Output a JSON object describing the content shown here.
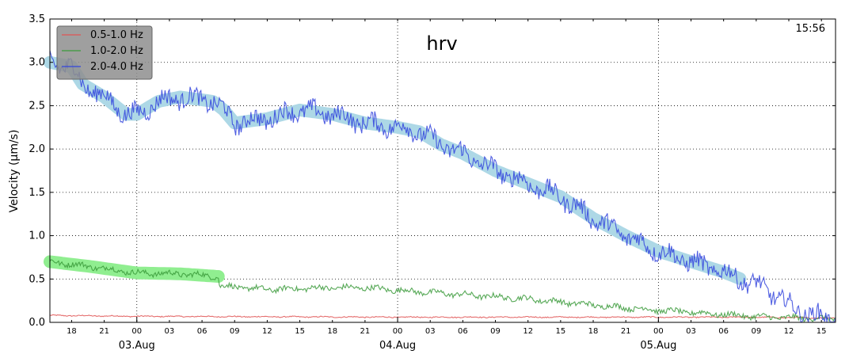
{
  "chart_data": {
    "type": "line",
    "title": "hrv",
    "time_label": "15:56",
    "ylabel": "Velocity (μm/s)",
    "ylim": [
      0,
      3.5
    ],
    "yticks": [
      "0.0",
      "0.5",
      "1.0",
      "1.5",
      "2.0",
      "2.5",
      "3.0",
      "3.5"
    ],
    "xlim_hours": [
      -8,
      64.3
    ],
    "xticks": [
      {
        "h": -6,
        "label": "18"
      },
      {
        "h": -3,
        "label": "21"
      },
      {
        "h": 0,
        "label": "00"
      },
      {
        "h": 3,
        "label": "03"
      },
      {
        "h": 6,
        "label": "06"
      },
      {
        "h": 9,
        "label": "09"
      },
      {
        "h": 12,
        "label": "12"
      },
      {
        "h": 15,
        "label": "15"
      },
      {
        "h": 18,
        "label": "18"
      },
      {
        "h": 21,
        "label": "21"
      },
      {
        "h": 24,
        "label": "00"
      },
      {
        "h": 27,
        "label": "03"
      },
      {
        "h": 30,
        "label": "06"
      },
      {
        "h": 33,
        "label": "09"
      },
      {
        "h": 36,
        "label": "12"
      },
      {
        "h": 39,
        "label": "15"
      },
      {
        "h": 42,
        "label": "18"
      },
      {
        "h": 45,
        "label": "21"
      },
      {
        "h": 48,
        "label": "00"
      },
      {
        "h": 51,
        "label": "03"
      },
      {
        "h": 54,
        "label": "06"
      },
      {
        "h": 57,
        "label": "09"
      },
      {
        "h": 60,
        "label": "12"
      },
      {
        "h": 63,
        "label": "15"
      }
    ],
    "day_labels": [
      {
        "h": 0,
        "label": "03.Aug"
      },
      {
        "h": 24,
        "label": "04.Aug"
      },
      {
        "h": 48,
        "label": "05.Aug"
      }
    ],
    "grid": true,
    "legend_position": "top-left",
    "series": [
      {
        "name": "0.5-1.0 Hz",
        "color": "#e05555",
        "noise": 0.006,
        "points": [
          [
            -8,
            0.08
          ],
          [
            0,
            0.07
          ],
          [
            24,
            0.06
          ],
          [
            48,
            0.06
          ],
          [
            56,
            0.06
          ],
          [
            64.3,
            0.05
          ]
        ]
      },
      {
        "name": "1.0-2.0 Hz",
        "color": "#3a9a3a",
        "noise": 0.03,
        "highlight_color": "#90ee90",
        "highlight_end_h": 7.5,
        "points": [
          [
            -8,
            0.7
          ],
          [
            -4,
            0.64
          ],
          [
            0,
            0.57
          ],
          [
            4,
            0.56
          ],
          [
            7.5,
            0.53
          ],
          [
            7.6,
            0.42
          ],
          [
            12,
            0.38
          ],
          [
            18,
            0.4
          ],
          [
            21,
            0.4
          ],
          [
            24,
            0.37
          ],
          [
            30,
            0.32
          ],
          [
            36,
            0.27
          ],
          [
            42,
            0.2
          ],
          [
            48,
            0.14
          ],
          [
            54,
            0.09
          ],
          [
            58,
            0.06
          ],
          [
            64.3,
            0.04
          ]
        ]
      },
      {
        "name": "2.0-4.0 Hz",
        "color": "#3344dd",
        "noise": 0.1,
        "highlight_color": "#add8e6",
        "highlight_end_h": 55.5,
        "points": [
          [
            -8,
            3.0
          ],
          [
            -6,
            2.95
          ],
          [
            -5,
            2.75
          ],
          [
            -3,
            2.6
          ],
          [
            -1,
            2.4
          ],
          [
            0,
            2.4
          ],
          [
            2,
            2.55
          ],
          [
            4,
            2.6
          ],
          [
            7,
            2.55
          ],
          [
            8,
            2.45
          ],
          [
            9,
            2.3
          ],
          [
            12,
            2.35
          ],
          [
            15,
            2.45
          ],
          [
            18,
            2.4
          ],
          [
            21,
            2.3
          ],
          [
            24,
            2.25
          ],
          [
            26,
            2.2
          ],
          [
            28,
            2.05
          ],
          [
            30,
            1.95
          ],
          [
            33,
            1.75
          ],
          [
            36,
            1.6
          ],
          [
            39,
            1.45
          ],
          [
            42,
            1.2
          ],
          [
            45,
            1.0
          ],
          [
            48,
            0.82
          ],
          [
            51,
            0.7
          ],
          [
            54,
            0.58
          ],
          [
            56,
            0.48
          ],
          [
            58,
            0.38
          ],
          [
            60,
            0.2
          ],
          [
            62,
            0.08
          ],
          [
            64.3,
            0.04
          ]
        ]
      }
    ]
  }
}
